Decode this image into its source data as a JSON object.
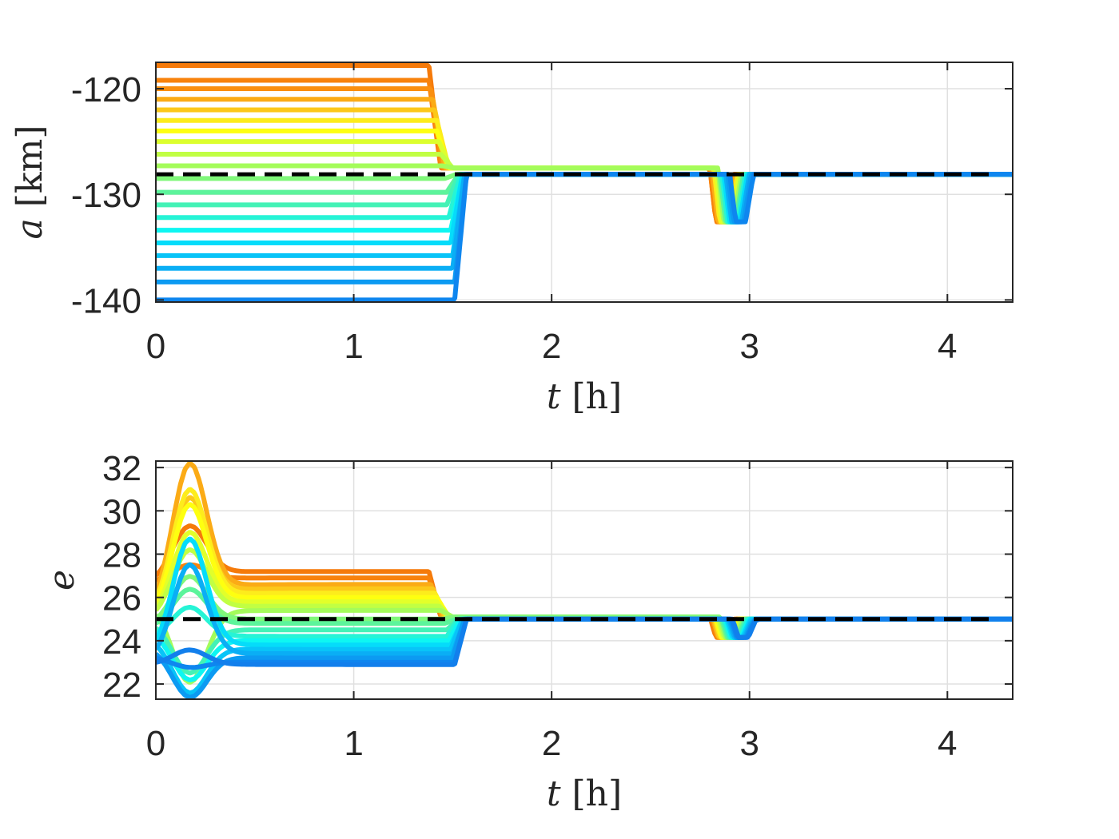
{
  "chart_data": [
    {
      "type": "line",
      "xlabel_var": "t",
      "xlabel_unit": "[h]",
      "ylabel_var": "a",
      "ylabel_unit": "[km]",
      "xlim": [
        0,
        4.33
      ],
      "ylim": [
        -140.2,
        -117.5
      ],
      "xticks": [
        0,
        1,
        2,
        3,
        4
      ],
      "yticks": [
        -140,
        -130,
        -120
      ],
      "grid": true,
      "reference_line": {
        "value": -128.1,
        "style": "dashed",
        "color": "#000000"
      },
      "final_value": -128.1,
      "first_switch_time_range_h": [
        1.38,
        1.52
      ],
      "second_maneuver_time_range_h": [
        2.8,
        2.95
      ],
      "dip_min": -132.6,
      "series": [
        {
          "color": "#f57a0a",
          "v0": -117.8,
          "ts": 1.38,
          "vm": -127.5,
          "dipstart": 2.8
        },
        {
          "color": "#f8820c",
          "v0": -119.2,
          "ts": 1.38,
          "vm": -127.5,
          "dipstart": 2.8
        },
        {
          "color": "#fa8f10",
          "v0": -120.0,
          "ts": 1.39,
          "vm": -127.5,
          "dipstart": 2.81
        },
        {
          "color": "#fbab16",
          "v0": -121.0,
          "ts": 1.4,
          "vm": -127.5,
          "dipstart": 2.81
        },
        {
          "color": "#fcc81a",
          "v0": -122.0,
          "ts": 1.41,
          "vm": -127.5,
          "dipstart": 2.82
        },
        {
          "color": "#fdec1c",
          "v0": -123.0,
          "ts": 1.42,
          "vm": -127.5,
          "dipstart": 2.82
        },
        {
          "color": "#feff10",
          "v0": -124.0,
          "ts": 1.42,
          "vm": -127.5,
          "dipstart": 2.83
        },
        {
          "color": "#dcff2e",
          "v0": -125.0,
          "ts": 1.43,
          "vm": -127.5,
          "dipstart": 2.83
        },
        {
          "color": "#c1ff43",
          "v0": -126.2,
          "ts": 1.44,
          "vm": -127.5,
          "dipstart": 2.84
        },
        {
          "color": "#a4fc5a",
          "v0": -127.3,
          "ts": 1.45,
          "vm": -127.5,
          "dipstart": 2.84
        },
        {
          "color": "#80f87a",
          "v0": -128.5,
          "ts": 1.46,
          "vm": -128.1,
          "dipstart": 2.85
        },
        {
          "color": "#5cf49b",
          "v0": -129.8,
          "ts": 1.47,
          "vm": -128.1,
          "dipstart": 2.85
        },
        {
          "color": "#43f2b6",
          "v0": -131.0,
          "ts": 1.47,
          "vm": -128.1,
          "dipstart": 2.86
        },
        {
          "color": "#26f4d6",
          "v0": -132.2,
          "ts": 1.48,
          "vm": -128.1,
          "dipstart": 2.86
        },
        {
          "color": "#0ef6f2",
          "v0": -133.4,
          "ts": 1.49,
          "vm": -128.1,
          "dipstart": 2.87
        },
        {
          "color": "#05dcfa",
          "v0": -134.6,
          "ts": 1.49,
          "vm": -128.1,
          "dipstart": 2.87
        },
        {
          "color": "#08c4f8",
          "v0": -135.8,
          "ts": 1.5,
          "vm": -128.1,
          "dipstart": 2.88
        },
        {
          "color": "#0aaef5",
          "v0": -137.0,
          "ts": 1.5,
          "vm": -128.1,
          "dipstart": 2.88
        },
        {
          "color": "#0c9af2",
          "v0": -138.3,
          "ts": 1.51,
          "vm": -128.1,
          "dipstart": 2.89
        },
        {
          "color": "#0e86ef",
          "v0": -140.0,
          "ts": 1.51,
          "vm": -128.1,
          "dipstart": 2.9
        }
      ]
    },
    {
      "type": "line",
      "xlabel_var": "t",
      "xlabel_unit": "[h]",
      "ylabel_var": "e",
      "ylabel_unit": "",
      "xlim": [
        0,
        4.33
      ],
      "ylim": [
        21.3,
        32.3
      ],
      "xticks": [
        0,
        1,
        2,
        3,
        4
      ],
      "yticks": [
        22,
        24,
        26,
        28,
        30,
        32
      ],
      "grid": true,
      "reference_line": {
        "value": 25.0,
        "style": "dashed",
        "color": "#000000"
      },
      "final_value": 25.0,
      "peak_time_h": 0.17,
      "dip_min": 24.15,
      "series": [
        {
          "color": "#f57a0a",
          "e0": 27.0,
          "peak": 29.3,
          "pl": 27.2,
          "ts": 1.38,
          "vm": 25.1
        },
        {
          "color": "#f8820c",
          "e0": 26.8,
          "peak": 27.5,
          "pl": 26.9,
          "ts": 1.38,
          "vm": 25.1
        },
        {
          "color": "#fbab16",
          "e0": 26.2,
          "peak": 32.2,
          "pl": 26.6,
          "ts": 1.39,
          "vm": 25.1
        },
        {
          "color": "#fcc81a",
          "e0": 26.0,
          "peak": 30.6,
          "pl": 26.4,
          "ts": 1.4,
          "vm": 25.1
        },
        {
          "color": "#fdec1c",
          "e0": 25.9,
          "peak": 31.0,
          "pl": 26.2,
          "ts": 1.41,
          "vm": 25.1
        },
        {
          "color": "#feff10",
          "e0": 25.7,
          "peak": 30.3,
          "pl": 26.0,
          "ts": 1.42,
          "vm": 25.1
        },
        {
          "color": "#e2ff2a",
          "e0": 25.5,
          "peak": 29.0,
          "pl": 25.8,
          "ts": 1.42,
          "vm": 25.1
        },
        {
          "color": "#c1ff43",
          "e0": 25.4,
          "peak": 28.2,
          "pl": 25.6,
          "ts": 1.43,
          "vm": 25.1
        },
        {
          "color": "#a4fc5a",
          "e0": 25.2,
          "peak": 22.0,
          "pl": 25.4,
          "ts": 1.44,
          "vm": 25.1
        },
        {
          "color": "#80f87a",
          "e0": 25.0,
          "peak": 27.0,
          "pl": 25.0,
          "ts": 1.45,
          "vm": 25.1
        },
        {
          "color": "#5cf49b",
          "e0": 24.8,
          "peak": 26.4,
          "pl": 24.8,
          "ts": 1.46,
          "vm": 25.0
        },
        {
          "color": "#43f2b6",
          "e0": 24.6,
          "peak": 22.5,
          "pl": 24.5,
          "ts": 1.47,
          "vm": 25.0
        },
        {
          "color": "#26f4d6",
          "e0": 24.4,
          "peak": 25.6,
          "pl": 24.2,
          "ts": 1.47,
          "vm": 25.0
        },
        {
          "color": "#0ef6f2",
          "e0": 24.2,
          "peak": 22.2,
          "pl": 24.0,
          "ts": 1.48,
          "vm": 25.0
        },
        {
          "color": "#05dcfa",
          "e0": 24.0,
          "peak": 28.8,
          "pl": 23.8,
          "ts": 1.49,
          "vm": 25.0
        },
        {
          "color": "#08c4f8",
          "e0": 23.8,
          "peak": 21.6,
          "pl": 23.6,
          "ts": 1.49,
          "vm": 25.0
        },
        {
          "color": "#0aaef5",
          "e0": 23.6,
          "peak": 27.6,
          "pl": 23.4,
          "ts": 1.5,
          "vm": 25.0
        },
        {
          "color": "#0c9af2",
          "e0": 23.4,
          "peak": 21.4,
          "pl": 23.2,
          "ts": 1.5,
          "vm": 25.0
        },
        {
          "color": "#0e86ef",
          "e0": 23.2,
          "peak": 22.8,
          "pl": 23.0,
          "ts": 1.51,
          "vm": 25.0
        },
        {
          "color": "#127fec",
          "e0": 23.0,
          "peak": 23.6,
          "pl": 22.9,
          "ts": 1.51,
          "vm": 25.0
        }
      ]
    }
  ]
}
